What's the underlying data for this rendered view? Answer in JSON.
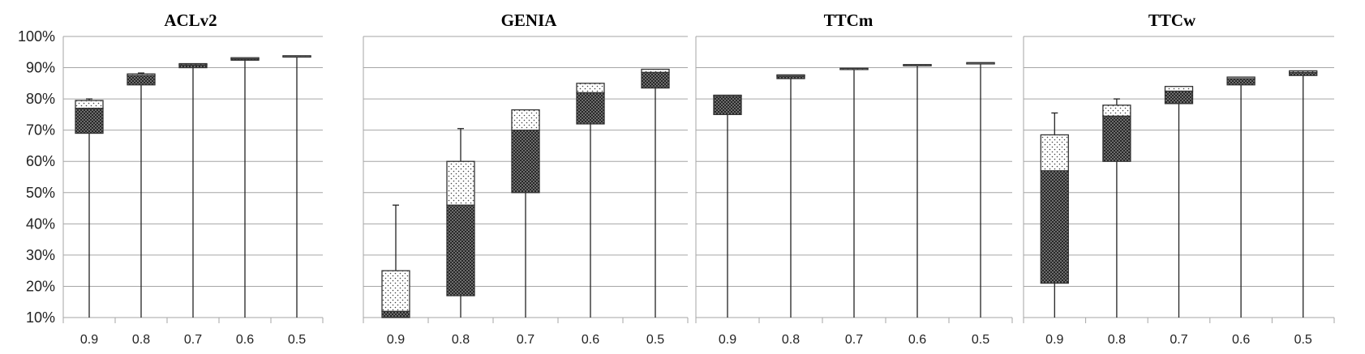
{
  "chart_data": {
    "type": "box",
    "y_axis": {
      "ylim": [
        10,
        100
      ],
      "ticks": [
        "10%",
        "20%",
        "30%",
        "40%",
        "50%",
        "60%",
        "70%",
        "80%",
        "90%",
        "100%"
      ],
      "grid": true
    },
    "panels": [
      {
        "title": "ACLv2",
        "categories": [
          "0.9",
          "0.8",
          "0.7",
          "0.6",
          "0.5"
        ],
        "boxes": [
          {
            "min": 10,
            "q1": 69,
            "median": 77,
            "q3": 79.5,
            "max": 80
          },
          {
            "min": 10,
            "q1": 84.5,
            "median": 87.5,
            "q3": 88,
            "max": 88.3
          },
          {
            "min": 10,
            "q1": 90,
            "median": 91,
            "q3": 91.3,
            "max": 91.3
          },
          {
            "min": 10,
            "q1": 92.4,
            "median": 93,
            "q3": 93.2,
            "max": 93.2
          },
          {
            "min": 10,
            "q1": 93.5,
            "median": 93.8,
            "q3": 93.8,
            "max": 93.8
          }
        ]
      },
      {
        "title": "GENIA",
        "categories": [
          "0.9",
          "0.8",
          "0.7",
          "0.6",
          "0.5"
        ],
        "boxes": [
          {
            "min": 10,
            "q1": 10,
            "median": 12,
            "q3": 25,
            "max": 46
          },
          {
            "min": 10,
            "q1": 17,
            "median": 46,
            "q3": 60,
            "max": 70.5
          },
          {
            "min": 10,
            "q1": 50,
            "median": 70,
            "q3": 76.5,
            "max": 76.5
          },
          {
            "min": 10,
            "q1": 72,
            "median": 82,
            "q3": 85,
            "max": 85
          },
          {
            "min": 10,
            "q1": 83.5,
            "median": 88.5,
            "q3": 89.5,
            "max": 89.5
          }
        ]
      },
      {
        "title": "TTCm",
        "categories": [
          "0.9",
          "0.8",
          "0.7",
          "0.6",
          "0.5"
        ],
        "boxes": [
          {
            "min": 10,
            "q1": 75,
            "median": 81,
            "q3": 81.2,
            "max": 81.2
          },
          {
            "min": 10,
            "q1": 86.5,
            "median": 87.5,
            "q3": 87.7,
            "max": 87.7
          },
          {
            "min": 10,
            "q1": 89.5,
            "median": 89.8,
            "q3": 89.8,
            "max": 89.8
          },
          {
            "min": 10,
            "q1": 90.8,
            "median": 91,
            "q3": 91,
            "max": 91
          },
          {
            "min": 10,
            "q1": 91.5,
            "median": 91.6,
            "q3": 91.6,
            "max": 91.6
          }
        ]
      },
      {
        "title": "TTCw",
        "categories": [
          "0.9",
          "0.8",
          "0.7",
          "0.6",
          "0.5"
        ],
        "boxes": [
          {
            "min": 10,
            "q1": 21,
            "median": 57,
            "q3": 68.5,
            "max": 75.5
          },
          {
            "min": 10,
            "q1": 60,
            "median": 74.5,
            "q3": 78,
            "max": 80
          },
          {
            "min": 10,
            "q1": 78.5,
            "median": 82.5,
            "q3": 84,
            "max": 84
          },
          {
            "min": 10,
            "q1": 84.5,
            "median": 86.5,
            "q3": 87,
            "max": 87
          },
          {
            "min": 10,
            "q1": 87.5,
            "median": 88.5,
            "q3": 89,
            "max": 89
          }
        ]
      }
    ]
  }
}
